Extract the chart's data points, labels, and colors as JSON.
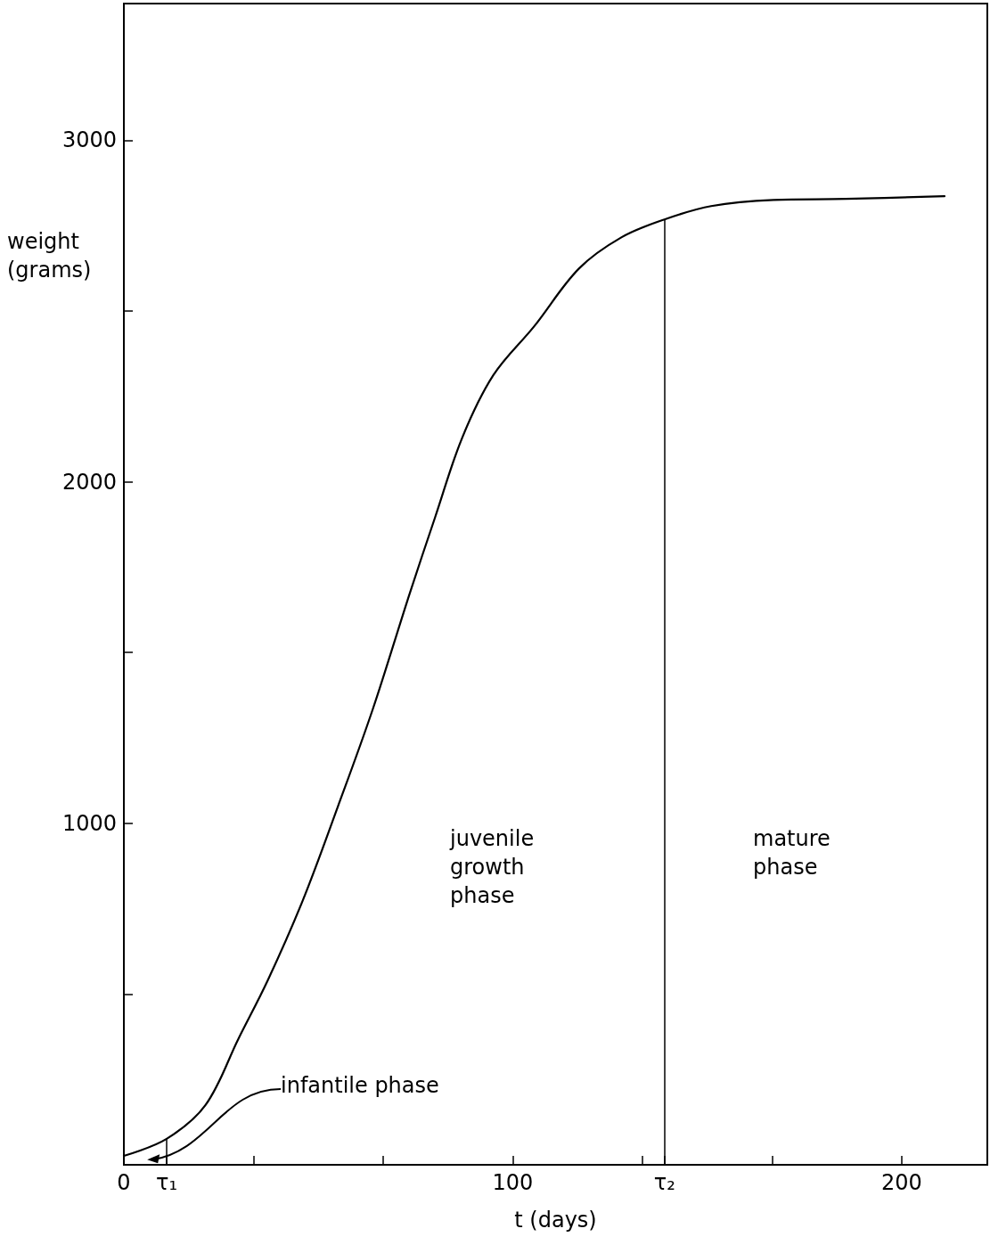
{
  "chart_data": {
    "type": "line",
    "xlabel": "t (days)",
    "ylabel": "weight (grams)",
    "series": [
      {
        "color": "#000000",
        "x": [
          0,
          11,
          21,
          29.5,
          37,
          46,
          55,
          64,
          73.5,
          80,
          87,
          95,
          105.5,
          117,
          128,
          139,
          151,
          167,
          185.6,
          211
        ],
        "values": [
          26,
          76,
          175,
          370,
          540,
          774,
          1048,
          1334,
          1673,
          1895,
          2129,
          2312,
          2455,
          2624,
          2716,
          2768,
          2807,
          2825,
          2828,
          2836
        ]
      },
      {
        "color": "#000000",
        "x": [
          11,
          11
        ],
        "values": [
          0,
          76
        ]
      }
    ],
    "marker": "none",
    "line_style": "solid",
    "grid": false,
    "xlim": [
      0,
      222
    ],
    "xticks": [
      0,
      {
        "value": 11,
        "label": "τ₁"
      },
      {
        "value": 33.3,
        "label": null
      },
      {
        "value": 66.7,
        "label": null
      },
      100,
      {
        "value": 133.3,
        "label": null
      },
      {
        "value": 139,
        "label": "τ₂"
      },
      {
        "value": 166.7,
        "label": null
      },
      200
    ],
    "ylim": [
      0,
      3400
    ],
    "yticks": [
      {
        "value": 500,
        "label": null
      },
      1000,
      {
        "value": 1500,
        "label": null
      },
      2000,
      {
        "value": 2500,
        "label": null
      },
      3000
    ],
    "ref_lines": [
      {
        "axis": "x",
        "value": 139
      }
    ],
    "annotations": [
      "juvenile growth phase",
      "mature phase",
      "infantile phase"
    ]
  }
}
